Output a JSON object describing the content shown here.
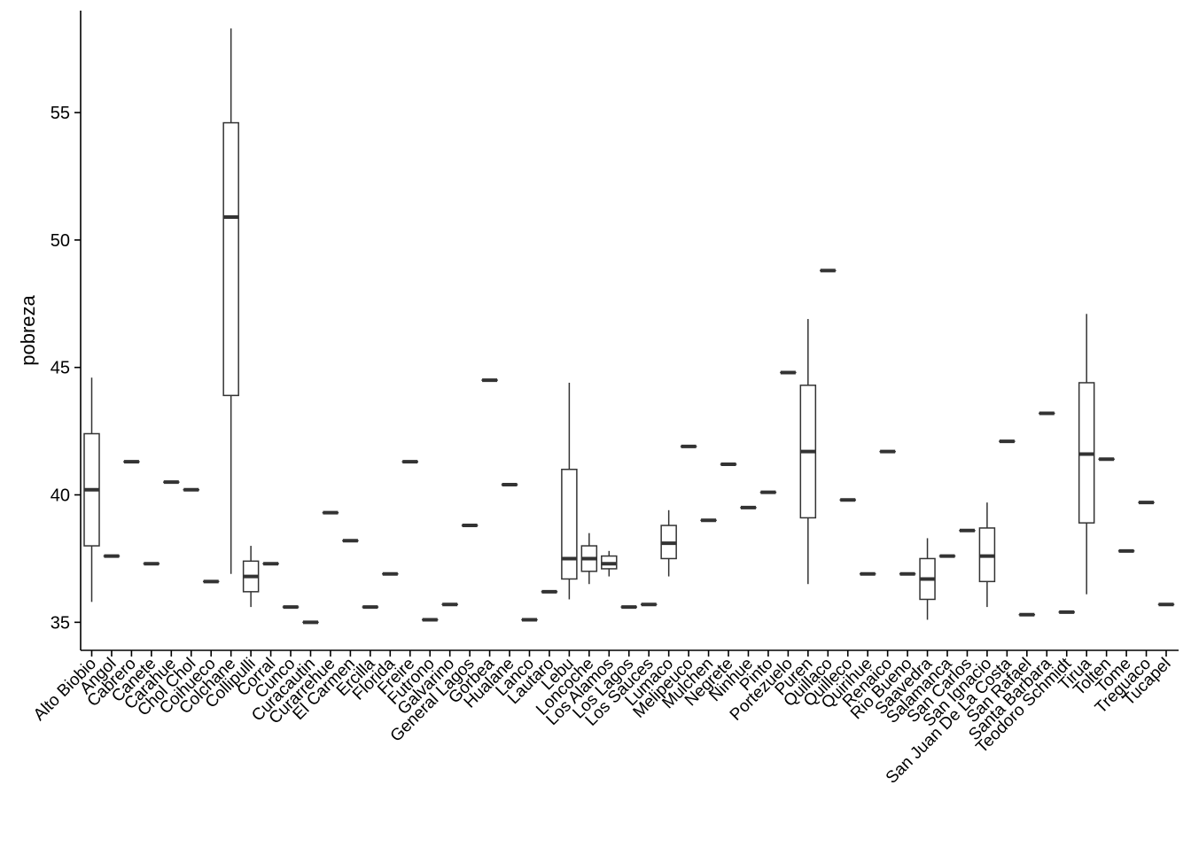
{
  "chart_data": {
    "type": "boxplot",
    "xlabel": "",
    "ylabel": "pobreza",
    "ylim": [
      33.9,
      59.0
    ],
    "yticks": [
      35,
      40,
      45,
      50,
      55
    ],
    "grid": false,
    "legend": "none",
    "colors": {
      "axis": "#000000",
      "box_stroke": "#333333",
      "box_fill": "#ffffff"
    },
    "categories": [
      "Alto Biobio",
      "Angol",
      "Cabrero",
      "Canete",
      "Carahue",
      "Chol Chol",
      "Coihueco",
      "Colchane",
      "Collipulli",
      "Corral",
      "Cunco",
      "Curacautin",
      "Curarrehue",
      "El Carmen",
      "Ercilla",
      "Florida",
      "Freire",
      "Futrono",
      "Galvarino",
      "General Lagos",
      "Gorbea",
      "Hualane",
      "Lanco",
      "Lautaro",
      "Lebu",
      "Loncoche",
      "Los Alamos",
      "Los Lagos",
      "Los Sauces",
      "Lumaco",
      "Melipeuco",
      "Mulchen",
      "Negrete",
      "Ninhue",
      "Pinto",
      "Portezuelo",
      "Puren",
      "Quillaco",
      "Quilleco",
      "Quirihue",
      "Renaico",
      "Rio Bueno",
      "Saavedra",
      "Salamanca",
      "San Carlos",
      "San Ignacio",
      "San Juan De La Costa",
      "San Rafael",
      "Santa Barbara",
      "Teodoro Schmidt",
      "Tirua",
      "Tolten",
      "Tome",
      "Treguaco",
      "Tucapel"
    ],
    "boxes": [
      {
        "min": 35.8,
        "q1": 38.0,
        "median": 40.2,
        "q3": 42.4,
        "max": 44.6
      },
      {
        "min": 37.6,
        "q1": 37.6,
        "median": 37.6,
        "q3": 37.6,
        "max": 37.6
      },
      {
        "min": 41.3,
        "q1": 41.3,
        "median": 41.3,
        "q3": 41.3,
        "max": 41.3
      },
      {
        "min": 37.3,
        "q1": 37.3,
        "median": 37.3,
        "q3": 37.3,
        "max": 37.3
      },
      {
        "min": 40.5,
        "q1": 40.5,
        "median": 40.5,
        "q3": 40.5,
        "max": 40.5
      },
      {
        "min": 40.2,
        "q1": 40.2,
        "median": 40.2,
        "q3": 40.2,
        "max": 40.2
      },
      {
        "min": 36.6,
        "q1": 36.6,
        "median": 36.6,
        "q3": 36.6,
        "max": 36.6
      },
      {
        "min": 36.9,
        "q1": 43.9,
        "median": 50.9,
        "q3": 54.6,
        "max": 58.3
      },
      {
        "min": 35.6,
        "q1": 36.2,
        "median": 36.8,
        "q3": 37.4,
        "max": 38.0
      },
      {
        "min": 37.3,
        "q1": 37.3,
        "median": 37.3,
        "q3": 37.3,
        "max": 37.3
      },
      {
        "min": 35.6,
        "q1": 35.6,
        "median": 35.6,
        "q3": 35.6,
        "max": 35.6
      },
      {
        "min": 35.0,
        "q1": 35.0,
        "median": 35.0,
        "q3": 35.0,
        "max": 35.0
      },
      {
        "min": 39.3,
        "q1": 39.3,
        "median": 39.3,
        "q3": 39.3,
        "max": 39.3
      },
      {
        "min": 38.2,
        "q1": 38.2,
        "median": 38.2,
        "q3": 38.2,
        "max": 38.2
      },
      {
        "min": 35.6,
        "q1": 35.6,
        "median": 35.6,
        "q3": 35.6,
        "max": 35.6
      },
      {
        "min": 36.9,
        "q1": 36.9,
        "median": 36.9,
        "q3": 36.9,
        "max": 36.9
      },
      {
        "min": 41.3,
        "q1": 41.3,
        "median": 41.3,
        "q3": 41.3,
        "max": 41.3
      },
      {
        "min": 35.1,
        "q1": 35.1,
        "median": 35.1,
        "q3": 35.1,
        "max": 35.1
      },
      {
        "min": 35.7,
        "q1": 35.7,
        "median": 35.7,
        "q3": 35.7,
        "max": 35.7
      },
      {
        "min": 38.8,
        "q1": 38.8,
        "median": 38.8,
        "q3": 38.8,
        "max": 38.8
      },
      {
        "min": 44.5,
        "q1": 44.5,
        "median": 44.5,
        "q3": 44.5,
        "max": 44.5
      },
      {
        "min": 40.4,
        "q1": 40.4,
        "median": 40.4,
        "q3": 40.4,
        "max": 40.4
      },
      {
        "min": 35.1,
        "q1": 35.1,
        "median": 35.1,
        "q3": 35.1,
        "max": 35.1
      },
      {
        "min": 36.2,
        "q1": 36.2,
        "median": 36.2,
        "q3": 36.2,
        "max": 36.2
      },
      {
        "min": 35.9,
        "q1": 36.7,
        "median": 37.5,
        "q3": 41.0,
        "max": 44.4
      },
      {
        "min": 36.5,
        "q1": 37.0,
        "median": 37.5,
        "q3": 38.0,
        "max": 38.5
      },
      {
        "min": 36.8,
        "q1": 37.1,
        "median": 37.3,
        "q3": 37.6,
        "max": 37.8
      },
      {
        "min": 35.6,
        "q1": 35.6,
        "median": 35.6,
        "q3": 35.6,
        "max": 35.6
      },
      {
        "min": 35.7,
        "q1": 35.7,
        "median": 35.7,
        "q3": 35.7,
        "max": 35.7
      },
      {
        "min": 36.8,
        "q1": 37.5,
        "median": 38.1,
        "q3": 38.8,
        "max": 39.4
      },
      {
        "min": 41.9,
        "q1": 41.9,
        "median": 41.9,
        "q3": 41.9,
        "max": 41.9
      },
      {
        "min": 39.0,
        "q1": 39.0,
        "median": 39.0,
        "q3": 39.0,
        "max": 39.0
      },
      {
        "min": 41.2,
        "q1": 41.2,
        "median": 41.2,
        "q3": 41.2,
        "max": 41.2
      },
      {
        "min": 39.5,
        "q1": 39.5,
        "median": 39.5,
        "q3": 39.5,
        "max": 39.5
      },
      {
        "min": 40.1,
        "q1": 40.1,
        "median": 40.1,
        "q3": 40.1,
        "max": 40.1
      },
      {
        "min": 44.8,
        "q1": 44.8,
        "median": 44.8,
        "q3": 44.8,
        "max": 44.8
      },
      {
        "min": 36.5,
        "q1": 39.1,
        "median": 41.7,
        "q3": 44.3,
        "max": 46.9
      },
      {
        "min": 48.8,
        "q1": 48.8,
        "median": 48.8,
        "q3": 48.8,
        "max": 48.8
      },
      {
        "min": 39.8,
        "q1": 39.8,
        "median": 39.8,
        "q3": 39.8,
        "max": 39.8
      },
      {
        "min": 36.9,
        "q1": 36.9,
        "median": 36.9,
        "q3": 36.9,
        "max": 36.9
      },
      {
        "min": 41.7,
        "q1": 41.7,
        "median": 41.7,
        "q3": 41.7,
        "max": 41.7
      },
      {
        "min": 36.9,
        "q1": 36.9,
        "median": 36.9,
        "q3": 36.9,
        "max": 36.9
      },
      {
        "min": 35.1,
        "q1": 35.9,
        "median": 36.7,
        "q3": 37.5,
        "max": 38.3
      },
      {
        "min": 37.6,
        "q1": 37.6,
        "median": 37.6,
        "q3": 37.6,
        "max": 37.6
      },
      {
        "min": 38.6,
        "q1": 38.6,
        "median": 38.6,
        "q3": 38.6,
        "max": 38.6
      },
      {
        "min": 35.6,
        "q1": 36.6,
        "median": 37.6,
        "q3": 38.7,
        "max": 39.7
      },
      {
        "min": 42.1,
        "q1": 42.1,
        "median": 42.1,
        "q3": 42.1,
        "max": 42.1
      },
      {
        "min": 35.3,
        "q1": 35.3,
        "median": 35.3,
        "q3": 35.3,
        "max": 35.3
      },
      {
        "min": 43.2,
        "q1": 43.2,
        "median": 43.2,
        "q3": 43.2,
        "max": 43.2
      },
      {
        "min": 35.4,
        "q1": 35.4,
        "median": 35.4,
        "q3": 35.4,
        "max": 35.4
      },
      {
        "min": 36.1,
        "q1": 38.9,
        "median": 41.6,
        "q3": 44.4,
        "max": 47.1
      },
      {
        "min": 41.4,
        "q1": 41.4,
        "median": 41.4,
        "q3": 41.4,
        "max": 41.4
      },
      {
        "min": 37.8,
        "q1": 37.8,
        "median": 37.8,
        "q3": 37.8,
        "max": 37.8
      },
      {
        "min": 39.7,
        "q1": 39.7,
        "median": 39.7,
        "q3": 39.7,
        "max": 39.7
      },
      {
        "min": 35.7,
        "q1": 35.7,
        "median": 35.7,
        "q3": 35.7,
        "max": 35.7
      }
    ]
  }
}
